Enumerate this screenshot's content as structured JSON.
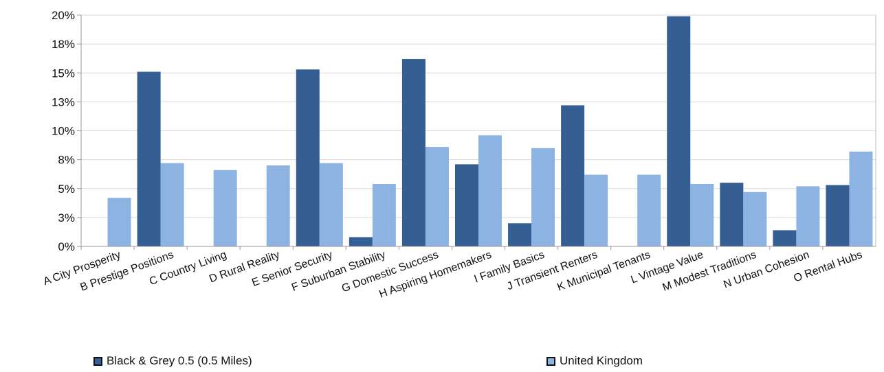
{
  "chart_data": {
    "type": "bar",
    "title": "",
    "xlabel": "",
    "ylabel": "",
    "ylim": [
      0,
      20
    ],
    "yticks": [
      0,
      2.5,
      5,
      7.5,
      10,
      12.5,
      15,
      17.5,
      20
    ],
    "ytick_labels": [
      "0%",
      "3%",
      "5%",
      "8%",
      "10%",
      "13%",
      "15%",
      "18%",
      "20%"
    ],
    "grid": true,
    "legend_position": "bottom",
    "categories": [
      "A City Prosperity",
      "B Prestige Positions",
      "C Country Living",
      "D Rural Reality",
      "E Senior Security",
      "F Suburban Stability",
      "G Domestic Success",
      "H Aspiring Homemakers",
      "I Family Basics",
      "J Transient Renters",
      "K Municipal Tenants",
      "L Vintage Value",
      "M Modest Traditions",
      "N Urban Cohesion",
      "O Rental Hubs"
    ],
    "series": [
      {
        "name": "Black & Grey 0.5 (0.5 Miles)",
        "color": "#355f93",
        "values": [
          0,
          15.1,
          0,
          0,
          15.3,
          0.8,
          16.2,
          7.1,
          2.0,
          12.2,
          0,
          19.9,
          5.5,
          1.4,
          5.3
        ]
      },
      {
        "name": "United Kingdom",
        "color": "#8db3e2",
        "values": [
          4.2,
          7.2,
          6.6,
          7.0,
          7.2,
          5.4,
          8.6,
          9.6,
          8.5,
          6.2,
          6.2,
          5.4,
          4.7,
          5.2,
          8.2
        ]
      }
    ]
  }
}
